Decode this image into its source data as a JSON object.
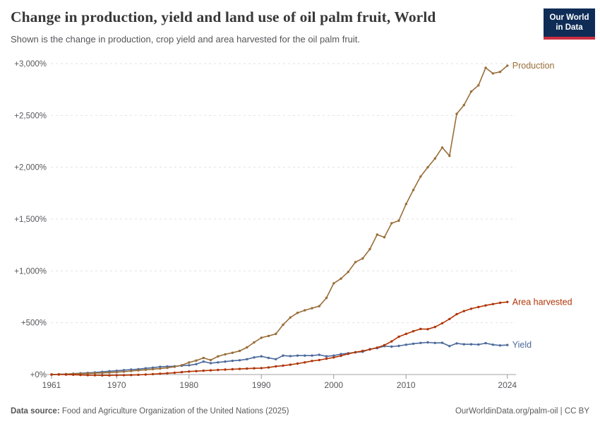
{
  "header": {
    "title": "Change in production, yield and land use of oil palm fruit, World",
    "subtitle": "Shown is the change in production, crop yield and area harvested for the oil palm fruit.",
    "logo": {
      "line1": "Our World",
      "line2": "in Data",
      "bg_color": "#0e2c56",
      "accent_color": "#c92f41"
    }
  },
  "footer": {
    "source_label": "Data source:",
    "source_text": " Food and Agriculture Organization of the United Nations (2025)",
    "right_text": "OurWorldinData.org/palm-oil | CC BY"
  },
  "chart_data": {
    "type": "line",
    "title": "Change in production, yield and land use of oil palm fruit, World",
    "xlabel": "",
    "ylabel": "",
    "grid": "horizontal-dashed",
    "legend_position": "end-of-line-labels",
    "xlim": [
      1961,
      2025
    ],
    "ylim": [
      0,
      3000
    ],
    "y_ticks": [
      {
        "value": 0,
        "label": "+0%"
      },
      {
        "value": 500,
        "label": "+500%"
      },
      {
        "value": 1000,
        "label": "+1,000%"
      },
      {
        "value": 1500,
        "label": "+1,500%"
      },
      {
        "value": 2000,
        "label": "+2,000%"
      },
      {
        "value": 2500,
        "label": "+2,500%"
      },
      {
        "value": 3000,
        "label": "+3,000%"
      }
    ],
    "x_ticks": [
      {
        "value": 1961,
        "label": "1961"
      },
      {
        "value": 1970,
        "label": "1970"
      },
      {
        "value": 1980,
        "label": "1980"
      },
      {
        "value": 1990,
        "label": "1990"
      },
      {
        "value": 2000,
        "label": "2000"
      },
      {
        "value": 2010,
        "label": "2010"
      },
      {
        "value": 2024,
        "label": "2024"
      }
    ],
    "x": [
      1961,
      1962,
      1963,
      1964,
      1965,
      1966,
      1967,
      1968,
      1969,
      1970,
      1971,
      1972,
      1973,
      1974,
      1975,
      1976,
      1977,
      1978,
      1979,
      1980,
      1981,
      1982,
      1983,
      1984,
      1985,
      1986,
      1987,
      1988,
      1989,
      1990,
      1991,
      1992,
      1993,
      1994,
      1995,
      1996,
      1997,
      1998,
      1999,
      2000,
      2001,
      2002,
      2003,
      2004,
      2005,
      2006,
      2007,
      2008,
      2009,
      2010,
      2011,
      2012,
      2013,
      2014,
      2015,
      2016,
      2017,
      2018,
      2019,
      2020,
      2021,
      2022,
      2023,
      2024
    ],
    "series": [
      {
        "name": "Yield",
        "color": "#4C6A9C",
        "unit": "% change",
        "values": [
          0,
          2,
          4,
          8,
          12,
          16,
          20,
          26,
          32,
          36,
          42,
          48,
          52,
          60,
          66,
          74,
          78,
          80,
          85,
          89,
          100,
          125,
          110,
          117,
          125,
          132,
          138,
          148,
          165,
          176,
          160,
          148,
          183,
          178,
          183,
          183,
          183,
          190,
          176,
          183,
          197,
          205,
          215,
          220,
          245,
          255,
          274,
          269,
          276,
          288,
          297,
          305,
          310,
          305,
          306,
          274,
          301,
          292,
          292,
          289,
          303,
          288,
          281,
          285
        ]
      },
      {
        "name": "Production",
        "color": "#996D39",
        "unit": "% change",
        "values": [
          0,
          2,
          4,
          6,
          9,
          11,
          14,
          16,
          19,
          23,
          28,
          34,
          40,
          46,
          52,
          57,
          65,
          75,
          90,
          116,
          135,
          160,
          140,
          175,
          195,
          210,
          228,
          262,
          310,
          355,
          372,
          392,
          480,
          550,
          595,
          620,
          640,
          660,
          740,
          880,
          925,
          990,
          1085,
          1120,
          1210,
          1350,
          1325,
          1460,
          1485,
          1645,
          1780,
          1910,
          2000,
          2085,
          2190,
          2110,
          2515,
          2600,
          2730,
          2790,
          2960,
          2905,
          2920,
          2980
        ]
      },
      {
        "name": "Area harvested",
        "color": "#B13507",
        "unit": "% change",
        "values": [
          0,
          0,
          -1,
          -2,
          -4,
          -6,
          -7,
          -8,
          -8,
          -7,
          -6,
          -5,
          -3,
          0,
          4,
          8,
          12,
          17,
          23,
          29,
          33,
          37,
          40,
          44,
          48,
          51,
          54,
          57,
          60,
          62,
          68,
          79,
          86,
          95,
          106,
          117,
          131,
          140,
          153,
          165,
          181,
          200,
          215,
          228,
          242,
          260,
          283,
          320,
          365,
          392,
          418,
          440,
          438,
          459,
          495,
          536,
          582,
          612,
          635,
          651,
          667,
          680,
          692,
          700
        ]
      }
    ],
    "colors": {
      "grid": "#e2e2e2",
      "zero_line": "#a3a3a3",
      "tick_text": "#58585d",
      "tick_mark": "#999999"
    }
  }
}
